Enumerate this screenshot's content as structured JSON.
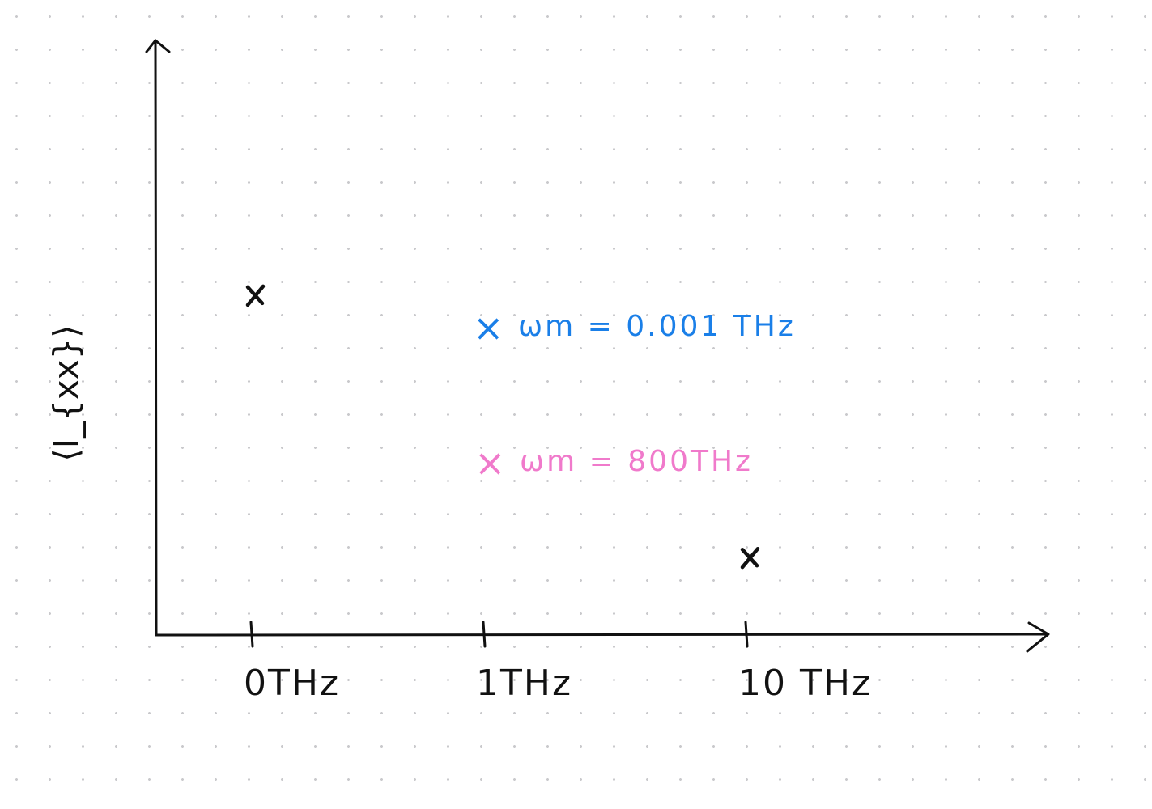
{
  "chart_data": {
    "type": "scatter",
    "ylabel": "⟨I_{xx}⟩",
    "categories": [
      "0THz",
      "1THz",
      "10 THz"
    ],
    "points": [
      {
        "x": "0THz",
        "y": 0.57,
        "color": "#111111"
      },
      {
        "x": "10 THz",
        "y": 0.13,
        "color": "#111111"
      }
    ],
    "legend": [
      {
        "marker": "×",
        "label": "ωm = 0.001 THz",
        "color": "#1a7fe8"
      },
      {
        "marker": "×",
        "label": "ωm = 800THz",
        "color": "#f07acb"
      }
    ],
    "legend_placement": "center",
    "ylim": [
      0,
      1
    ],
    "grid": "dot-grid background"
  },
  "colors": {
    "ink": "#111111",
    "blue": "#1a7fe8",
    "pink": "#f07acb"
  }
}
